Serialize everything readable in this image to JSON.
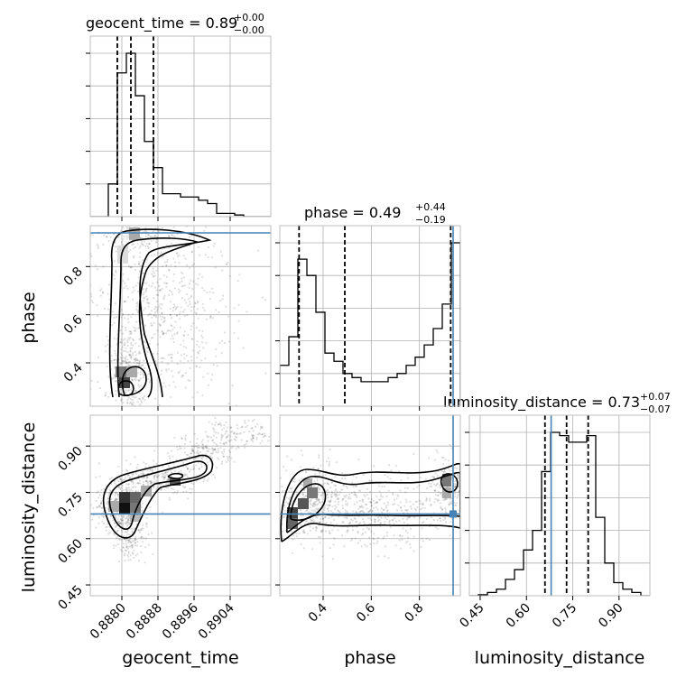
{
  "chart_data": {
    "type": "corner",
    "parameters": [
      "geocent_time",
      "phase",
      "luminosity_distance"
    ],
    "truth": {
      "geocent_time": null,
      "phase": 0.94,
      "luminosity_distance": 0.68
    },
    "titles": [
      {
        "param": "geocent_time",
        "text": "geocent_time = 0.89",
        "plus": "+0.00",
        "minus": "−0.00"
      },
      {
        "param": "phase",
        "text": "phase = 0.49",
        "plus": "+0.44",
        "minus": "−0.19"
      },
      {
        "param": "luminosity_distance",
        "text": "luminosity_distance = 0.73",
        "plus": "+0.07",
        "minus": "−0.07"
      }
    ],
    "axes": {
      "geocent_time": {
        "range": [
          0.8873,
          0.8913
        ],
        "ticks": [
          0.888,
          0.8888,
          0.8896,
          0.8904
        ],
        "tick_labels": [
          "0.8880",
          "0.8888",
          "0.8896",
          "0.8904"
        ],
        "label": "geocent_time"
      },
      "phase": {
        "range": [
          0.22,
          0.97
        ],
        "ticks": [
          0.4,
          0.6,
          0.8
        ],
        "tick_labels": [
          "0.4",
          "0.6",
          "0.8"
        ],
        "label": "phase"
      },
      "luminosity_distance": {
        "range": [
          0.415,
          1.0
        ],
        "ticks": [
          0.45,
          0.6,
          0.75,
          0.9
        ],
        "tick_labels": [
          "0.45",
          "0.60",
          "0.75",
          "0.90"
        ],
        "label": "luminosity_distance"
      }
    },
    "hist_1d": {
      "geocent_time": {
        "edges": [
          0.8873,
          0.8875,
          0.8877,
          0.8879,
          0.8881,
          0.8883,
          0.8885,
          0.8887,
          0.8889,
          0.8891,
          0.8893,
          0.8895,
          0.8897,
          0.8899,
          0.8901,
          0.8903,
          0.8905,
          0.8907,
          0.8909,
          0.8911,
          0.8913
        ],
        "counts": [
          0,
          0,
          10,
          44,
          50,
          37,
          23,
          15,
          7,
          7,
          6,
          6,
          5,
          4,
          1,
          1,
          0.5,
          0,
          0,
          0
        ],
        "quantiles": [
          0.8879,
          0.8882,
          0.8887
        ]
      },
      "phase": {
        "edges": [
          0.22,
          0.2575,
          0.295,
          0.3325,
          0.37,
          0.4075,
          0.445,
          0.4825,
          0.52,
          0.5575,
          0.595,
          0.6325,
          0.67,
          0.7075,
          0.745,
          0.7825,
          0.82,
          0.8575,
          0.895,
          0.9325,
          0.97
        ],
        "counts": [
          10,
          17,
          36,
          32,
          23,
          13,
          11,
          8,
          7,
          6,
          6,
          6,
          7,
          8,
          10,
          12,
          15,
          19,
          25,
          40
        ],
        "quantiles": [
          0.3,
          0.49,
          0.93
        ]
      },
      "luminosity_distance": {
        "edges": [
          0.415,
          0.44425,
          0.4735,
          0.50275,
          0.532,
          0.56125,
          0.5905,
          0.61975,
          0.649,
          0.67825,
          0.7075,
          0.73675,
          0.766,
          0.79525,
          0.8245,
          0.85375,
          0.883,
          0.91225,
          0.9415,
          0.97075,
          1.0
        ],
        "counts": [
          0,
          0.3,
          1,
          2,
          5,
          8,
          14,
          20,
          38,
          50,
          49,
          47,
          47,
          49,
          24,
          10,
          4,
          2,
          1,
          0
        ],
        "quantiles": [
          0.66,
          0.73,
          0.8
        ]
      }
    }
  }
}
